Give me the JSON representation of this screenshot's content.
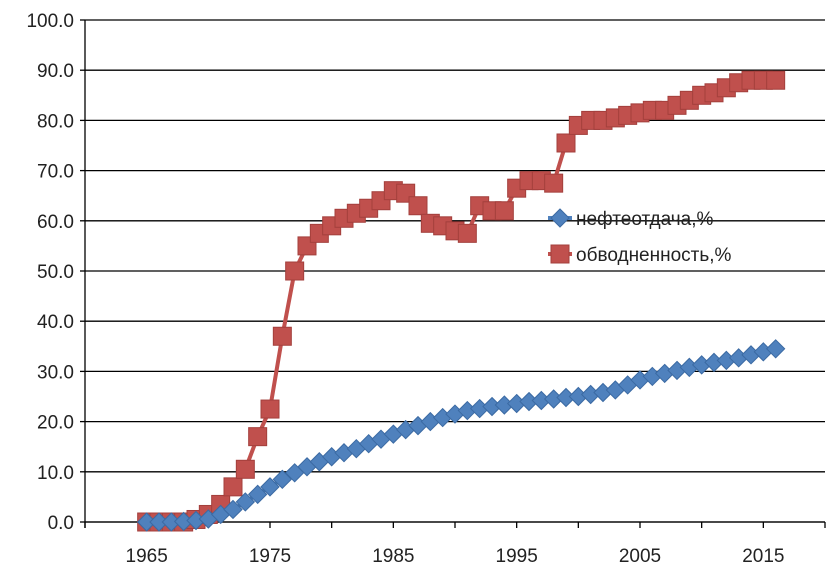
{
  "chart_data": {
    "type": "line",
    "title": "",
    "xlabel": "",
    "ylabel": "",
    "ylim": [
      0,
      100
    ],
    "xlim": [
      1960,
      2020
    ],
    "yticks": [
      "0.0",
      "10.0",
      "20.0",
      "30.0",
      "40.0",
      "50.0",
      "60.0",
      "70.0",
      "80.0",
      "90.0",
      "100.0"
    ],
    "xticks": [
      "1965",
      "1975",
      "1985",
      "1995",
      "2005",
      "2015"
    ],
    "grid": true,
    "legend_position": "right-center",
    "series": [
      {
        "name": "нефтеотдача,%",
        "color": "#4f81bd",
        "marker": "diamond",
        "x": [
          1965,
          1966,
          1967,
          1968,
          1969,
          1970,
          1971,
          1972,
          1973,
          1974,
          1975,
          1976,
          1977,
          1978,
          1979,
          1980,
          1981,
          1982,
          1983,
          1984,
          1985,
          1986,
          1987,
          1988,
          1989,
          1990,
          1991,
          1992,
          1993,
          1994,
          1995,
          1996,
          1997,
          1998,
          1999,
          2000,
          2001,
          2002,
          2003,
          2004,
          2005,
          2006,
          2007,
          2008,
          2009,
          2010,
          2011,
          2012,
          2013,
          2014,
          2015,
          2016
        ],
        "y": [
          0.0,
          0.0,
          0.0,
          0.1,
          0.3,
          0.6,
          1.5,
          2.5,
          4.0,
          5.5,
          7.0,
          8.5,
          9.8,
          11.0,
          12.0,
          13.0,
          13.8,
          14.6,
          15.6,
          16.5,
          17.5,
          18.4,
          19.2,
          20.0,
          20.8,
          21.5,
          22.2,
          22.6,
          23.0,
          23.3,
          23.6,
          24.0,
          24.2,
          24.5,
          24.8,
          25.0,
          25.4,
          25.8,
          26.3,
          27.3,
          28.3,
          29.0,
          29.6,
          30.2,
          30.8,
          31.3,
          31.8,
          32.2,
          32.7,
          33.3,
          33.9,
          34.5
        ]
      },
      {
        "name": "обводненность,%",
        "color": "#c0504d",
        "marker": "square",
        "x": [
          1965,
          1966,
          1967,
          1968,
          1969,
          1970,
          1971,
          1972,
          1973,
          1974,
          1975,
          1976,
          1977,
          1978,
          1979,
          1980,
          1981,
          1982,
          1983,
          1984,
          1985,
          1986,
          1987,
          1988,
          1989,
          1990,
          1991,
          1992,
          1993,
          1994,
          1995,
          1996,
          1997,
          1998,
          1999,
          2000,
          2001,
          2002,
          2003,
          2004,
          2005,
          2006,
          2007,
          2008,
          2009,
          2010,
          2011,
          2012,
          2013,
          2014,
          2015,
          2016
        ],
        "y": [
          0.0,
          0.0,
          0.0,
          0.0,
          0.5,
          1.5,
          3.5,
          7.0,
          10.5,
          17.0,
          22.5,
          37.0,
          50.0,
          55.0,
          57.5,
          59.0,
          60.5,
          61.5,
          62.5,
          64.0,
          66.0,
          65.5,
          63.0,
          59.5,
          59.0,
          58.0,
          57.5,
          63.0,
          62.0,
          62.0,
          66.5,
          68.0,
          68.0,
          67.5,
          75.5,
          79.0,
          80.0,
          80.0,
          80.5,
          81.0,
          81.5,
          82.0,
          82.0,
          83.0,
          84.0,
          85.0,
          85.5,
          86.5,
          87.5,
          88.0,
          88.0,
          88.0
        ]
      }
    ]
  }
}
